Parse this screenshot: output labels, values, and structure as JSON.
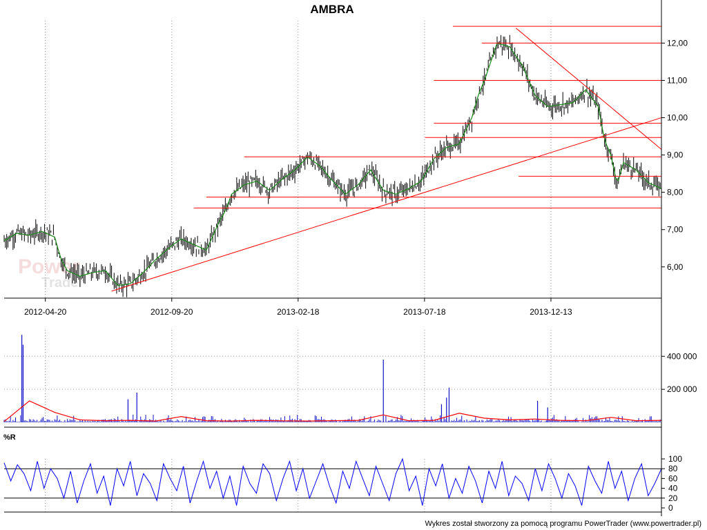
{
  "title": "AMBRA",
  "footer": "Wykres został stworzony za pomocą programu PowerTrader (www.powertrader.pl)",
  "watermark": {
    "line1": "Power",
    "line2": "Trader"
  },
  "indicator_label": "%R",
  "colors": {
    "price": "#000000",
    "ma": "#1a8a1a",
    "trendline": "#ff0000",
    "volume": "#1010c8",
    "volume_ma": "#ff0000",
    "wr": "#0000ff",
    "grid": "#9a9a9a"
  },
  "chart_data": [
    {
      "type": "line",
      "name": "price",
      "x_tick_labels": [
        "2012-04-20",
        "2012-09-20",
        "2013-02-18",
        "2013-07-18",
        "2013-12-13"
      ],
      "y_tick_labels": [
        "6,00",
        "7,00",
        "8,00",
        "9,00",
        "10,00",
        "11,00",
        "12,00"
      ],
      "y_ticks": [
        6,
        7,
        8,
        9,
        10,
        11,
        12
      ],
      "ylim": [
        5.2,
        12.6
      ],
      "x_range": [
        0,
        520
      ],
      "x_ticks": [
        8,
        108,
        208,
        308,
        408
      ],
      "series": [
        {
          "x": [
            0,
            10,
            20,
            30,
            40,
            45,
            50,
            60,
            70,
            80,
            90,
            100,
            110,
            120,
            130,
            140,
            150,
            160,
            170,
            175,
            180,
            190,
            200,
            210,
            220,
            230,
            240,
            250,
            260,
            270,
            280,
            290,
            300,
            310,
            320,
            330,
            340,
            350,
            360,
            370,
            375,
            380,
            390,
            400,
            410,
            420,
            430,
            440,
            450,
            460,
            470,
            475,
            480,
            485,
            490,
            500,
            510,
            520
          ],
          "values": [
            6.7,
            6.9,
            6.85,
            6.95,
            6.8,
            6.2,
            5.9,
            5.75,
            5.85,
            5.9,
            5.5,
            5.55,
            5.85,
            6.2,
            6.5,
            6.75,
            6.6,
            6.45,
            7.2,
            7.5,
            7.95,
            8.2,
            8.3,
            8.05,
            8.35,
            8.6,
            8.95,
            8.7,
            8.3,
            7.95,
            8.2,
            8.6,
            8.05,
            7.95,
            8.1,
            8.3,
            8.9,
            9.2,
            9.3,
            10.0,
            10.6,
            11.0,
            12.0,
            11.9,
            11.4,
            10.6,
            10.3,
            10.35,
            10.4,
            10.75,
            10.3,
            9.4,
            9.0,
            8.2,
            8.8,
            8.6,
            8.25,
            8.1
          ]
        }
      ],
      "horizontal_lines": [
        12.45,
        12.0,
        11.0,
        9.85,
        9.47,
        8.95,
        8.43,
        7.87,
        7.58
      ],
      "trendlines": [
        {
          "x": [
            85,
            520
          ],
          "y": [
            5.35,
            10.0
          ]
        },
        {
          "x": [
            405,
            520
          ],
          "y": [
            12.4,
            9.15
          ]
        }
      ]
    },
    {
      "type": "bar",
      "name": "volume",
      "y_tick_labels": [
        "200 000",
        "400 000"
      ],
      "y_ticks": [
        200000,
        400000
      ],
      "ylim": [
        0,
        560000
      ],
      "spikes": [
        {
          "x": 14,
          "value": 530000
        },
        {
          "x": 15,
          "value": 470000
        },
        {
          "x": 98,
          "value": 140000
        },
        {
          "x": 105,
          "value": 180000
        },
        {
          "x": 300,
          "value": 380000
        },
        {
          "x": 346,
          "value": 110000
        },
        {
          "x": 350,
          "value": 150000
        },
        {
          "x": 352,
          "value": 210000
        },
        {
          "x": 422,
          "value": 130000
        },
        {
          "x": 430,
          "value": 90000
        }
      ],
      "ma_values": [
        5000,
        130000,
        60000,
        15000,
        10000,
        12000,
        8000,
        35000,
        10000,
        8000,
        12000,
        9000,
        8000,
        10000,
        12000,
        45000,
        10000,
        12000,
        55000,
        25000,
        15000,
        20000,
        12000,
        10000,
        30000,
        10000,
        12000
      ]
    },
    {
      "type": "line",
      "name": "%R",
      "y_tick_labels": [
        "0",
        "20",
        "40",
        "60",
        "80",
        "100"
      ],
      "y_ticks": [
        0,
        20,
        40,
        60,
        80,
        100
      ],
      "ylim": [
        0,
        100
      ],
      "levels": [
        20,
        80
      ],
      "values": [
        92,
        55,
        88,
        70,
        35,
        95,
        40,
        80,
        60,
        20,
        75,
        10,
        55,
        90,
        30,
        65,
        5,
        80,
        45,
        95,
        25,
        70,
        50,
        15,
        90,
        60,
        35,
        85,
        10,
        55,
        95,
        40,
        75,
        20,
        65,
        5,
        85,
        50,
        30,
        90,
        70,
        15,
        60,
        95,
        35,
        80,
        20,
        55,
        90,
        45,
        10,
        75,
        40,
        95,
        60,
        25,
        85,
        50,
        15,
        70,
        100,
        35,
        65,
        5,
        80,
        45,
        90,
        20,
        60,
        30,
        85,
        55,
        10,
        75,
        40,
        95,
        25,
        65,
        50,
        15,
        80,
        35,
        90,
        60,
        20,
        70,
        45,
        5,
        85,
        55,
        30,
        95,
        40,
        75,
        15,
        60,
        90,
        25,
        50,
        80
      ]
    }
  ]
}
